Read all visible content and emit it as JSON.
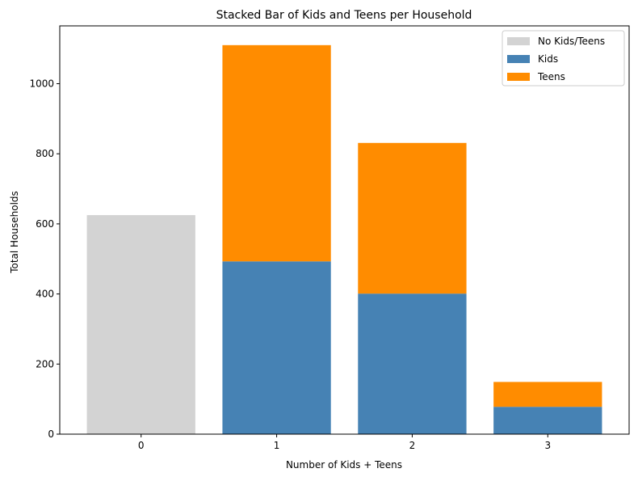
{
  "chart_data": {
    "type": "bar",
    "stacked": true,
    "title": "Stacked Bar of Kids and Teens per Household",
    "xlabel": "Number of Kids + Teens",
    "ylabel": "Total Households",
    "categories": [
      "0",
      "1",
      "2",
      "3"
    ],
    "ylim": [
      0,
      1165
    ],
    "yticks": [
      0,
      200,
      400,
      600,
      800,
      1000
    ],
    "grid": false,
    "legend_position": "top-right",
    "series": [
      {
        "name": "No Kids/Teens",
        "color": "#d3d3d3",
        "values": [
          625,
          0,
          0,
          0
        ]
      },
      {
        "name": "Kids",
        "color": "#4682b4",
        "values": [
          0,
          493,
          401,
          78
        ]
      },
      {
        "name": "Teens",
        "color": "#ff8c00",
        "values": [
          0,
          617,
          430,
          71
        ]
      }
    ]
  }
}
